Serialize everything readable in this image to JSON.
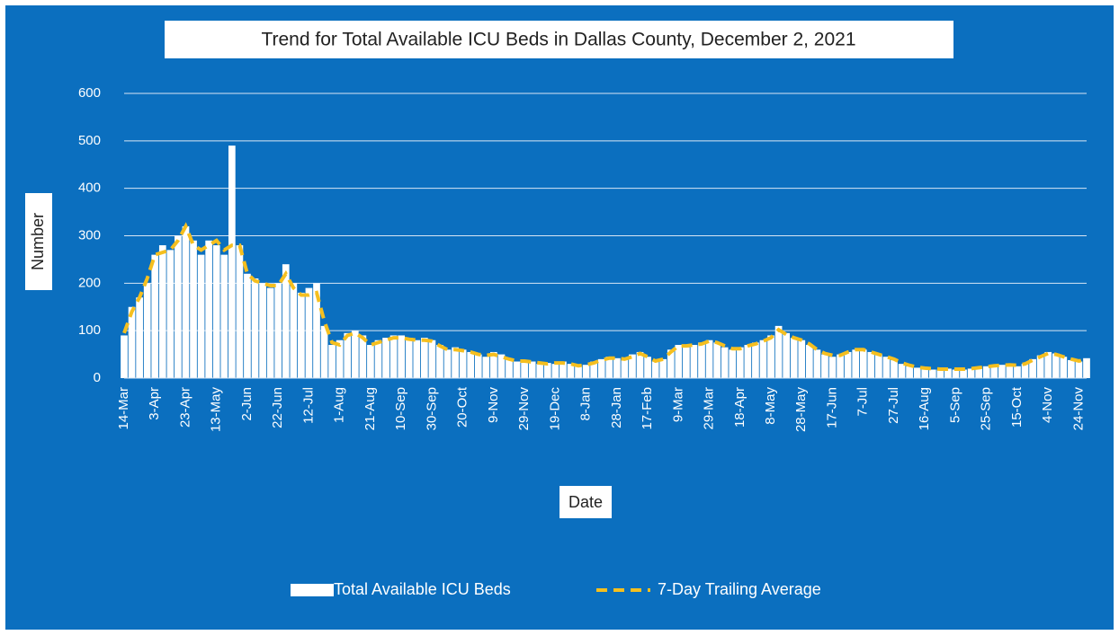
{
  "chart_data": {
    "type": "bar_line",
    "title": "Trend for Total Available ICU Beds in Dallas County, December 2, 2021",
    "x_label": "Date",
    "y_label": "Number",
    "categories": [
      "14-Mar",
      null,
      null,
      null,
      "3-Apr",
      null,
      null,
      null,
      "23-Apr",
      null,
      null,
      null,
      "13-May",
      null,
      null,
      null,
      "2-Jun",
      null,
      null,
      null,
      "22-Jun",
      null,
      null,
      null,
      "12-Jul",
      null,
      null,
      null,
      "1-Aug",
      null,
      null,
      null,
      "21-Aug",
      null,
      null,
      null,
      "10-Sep",
      null,
      null,
      null,
      "30-Sep",
      null,
      null,
      null,
      "20-Oct",
      null,
      null,
      null,
      "9-Nov",
      null,
      null,
      null,
      "29-Nov",
      null,
      null,
      null,
      "19-Dec",
      null,
      null,
      null,
      "8-Jan",
      null,
      null,
      null,
      "28-Jan",
      null,
      null,
      null,
      "17-Feb",
      null,
      null,
      null,
      "9-Mar",
      null,
      null,
      null,
      "29-Mar",
      null,
      null,
      null,
      "18-Apr",
      null,
      null,
      null,
      "8-May",
      null,
      null,
      null,
      "28-May",
      null,
      null,
      null,
      "17-Jun",
      null,
      null,
      null,
      "7-Jul",
      null,
      null,
      null,
      "27-Jul",
      null,
      null,
      null,
      "16-Aug",
      null,
      null,
      null,
      "5-Sep",
      null,
      null,
      null,
      "25-Sep",
      null,
      null,
      null,
      "15-Oct",
      null,
      null,
      null,
      "4-Nov",
      null,
      null,
      null,
      "24-Nov",
      null
    ],
    "series": [
      {
        "name": "Total Available ICU Beds",
        "kind": "bar",
        "color": "#ffffff",
        "values": [
          90,
          150,
          170,
          200,
          260,
          280,
          270,
          300,
          320,
          290,
          260,
          290,
          280,
          260,
          490,
          280,
          220,
          210,
          200,
          190,
          200,
          240,
          200,
          180,
          190,
          200,
          110,
          70,
          80,
          95,
          100,
          90,
          70,
          80,
          85,
          90,
          90,
          85,
          80,
          85,
          80,
          70,
          60,
          65,
          60,
          55,
          50,
          45,
          55,
          50,
          40,
          35,
          38,
          35,
          30,
          32,
          30,
          35,
          30,
          25,
          28,
          35,
          40,
          45,
          42,
          40,
          50,
          55,
          45,
          35,
          40,
          60,
          70,
          65,
          70,
          75,
          80,
          75,
          65,
          60,
          65,
          70,
          75,
          80,
          90,
          110,
          95,
          85,
          80,
          70,
          60,
          50,
          45,
          50,
          55,
          60,
          60,
          55,
          50,
          45,
          38,
          30,
          25,
          22,
          20,
          18,
          18,
          20,
          18,
          18,
          20,
          22,
          25,
          25,
          28,
          28,
          25,
          30,
          40,
          48,
          55,
          52,
          45,
          38,
          35,
          42
        ]
      },
      {
        "name": "7-Day Trailing Average",
        "kind": "line",
        "color": "#f5bf1f",
        "values": [
          95,
          140,
          170,
          210,
          260,
          265,
          270,
          290,
          320,
          280,
          270,
          280,
          290,
          270,
          280,
          280,
          220,
          205,
          200,
          195,
          195,
          220,
          190,
          175,
          175,
          180,
          120,
          75,
          70,
          90,
          95,
          85,
          70,
          75,
          80,
          85,
          85,
          82,
          80,
          80,
          78,
          68,
          60,
          60,
          58,
          55,
          50,
          48,
          50,
          45,
          40,
          36,
          36,
          34,
          32,
          30,
          32,
          32,
          30,
          26,
          28,
          32,
          38,
          42,
          42,
          40,
          45,
          52,
          45,
          36,
          40,
          55,
          68,
          68,
          70,
          72,
          78,
          75,
          68,
          62,
          62,
          68,
          72,
          78,
          85,
          102,
          92,
          85,
          80,
          72,
          60,
          52,
          48,
          48,
          55,
          60,
          60,
          55,
          50,
          45,
          40,
          32,
          27,
          23,
          21,
          20,
          19,
          19,
          19,
          19,
          20,
          22,
          24,
          26,
          27,
          28,
          27,
          30,
          38,
          45,
          52,
          50,
          45,
          40,
          36,
          40
        ]
      }
    ],
    "ylim": [
      0,
      600
    ],
    "yticks": [
      0,
      100,
      200,
      300,
      400,
      500,
      600
    ],
    "grid": true,
    "legend": "bottom"
  }
}
